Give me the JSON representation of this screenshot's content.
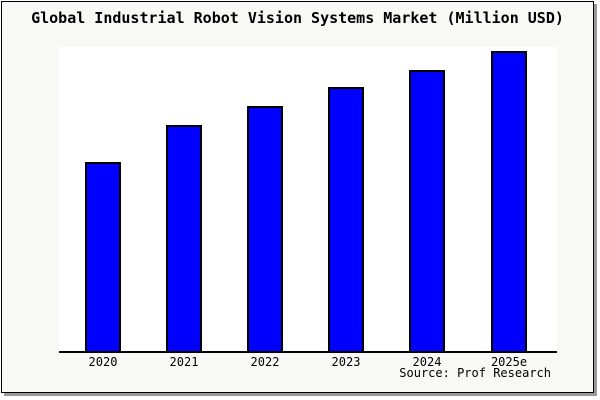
{
  "title": "Global Industrial Robot Vision Systems Market (Million USD)",
  "source_credit": "Source: Prof Research",
  "colors": {
    "frame_background": "#f8f8f4",
    "frame_border": "#000000",
    "frame_shadow": "#999999",
    "plot_background": "#ffffff",
    "bar_fill": "#0000ff",
    "bar_border": "#000000",
    "axis_line": "#000000",
    "text": "#000000"
  },
  "chart_data": {
    "type": "bar",
    "title": "Global Industrial Robot Vision Systems Market (Million USD)",
    "categories": [
      "2020",
      "2021",
      "2022",
      "2023",
      "2024",
      "2025e"
    ],
    "values": [
      189,
      226,
      245,
      264,
      281,
      300
    ],
    "xlabel": "",
    "ylabel": "",
    "ylim": [
      0,
      304
    ],
    "y_axis_visible": false,
    "grid": false,
    "legend": false,
    "annotation": "Source: Prof Research"
  }
}
